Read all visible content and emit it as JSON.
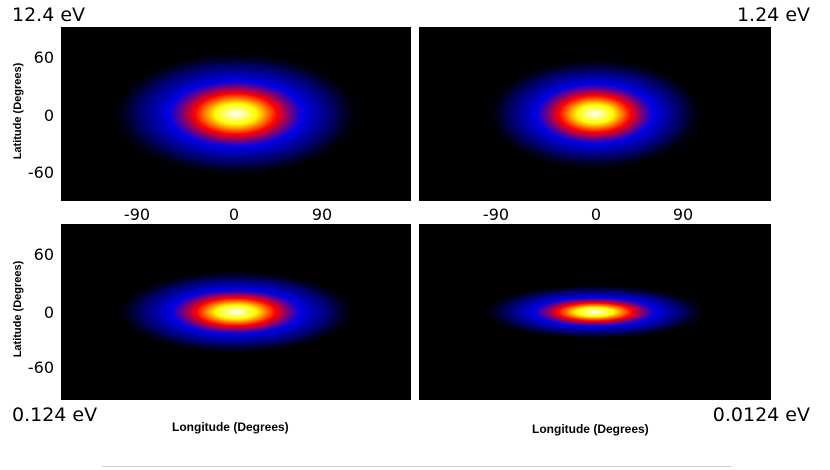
{
  "chart_data": [
    {
      "type": "heatmap",
      "title": "12.4 eV",
      "x_ticks": [
        "-90",
        "0",
        "90"
      ],
      "y_ticks": [
        "60",
        "0",
        "-60"
      ],
      "ylabel": "Latitude (Degrees)",
      "xlabel": "",
      "xlim": [
        -180,
        180
      ],
      "ylim": [
        -90,
        90
      ],
      "peak": {
        "lon": 0,
        "lat": 0
      },
      "spread_deg": {
        "lon": 60,
        "lat": 30
      },
      "colormap": [
        "#000000",
        "#0000ff",
        "#ff0000",
        "#ffff00",
        "#ffffff"
      ]
    },
    {
      "type": "heatmap",
      "title": "1.24 eV",
      "x_ticks": [
        "-90",
        "0",
        "90"
      ],
      "y_ticks": [],
      "ylabel": "",
      "xlabel": "",
      "xlim": [
        -180,
        180
      ],
      "ylim": [
        -90,
        90
      ],
      "peak": {
        "lon": 0,
        "lat": 0
      },
      "spread_deg": {
        "lon": 52,
        "lat": 27
      },
      "colormap": [
        "#000000",
        "#0000ff",
        "#ff0000",
        "#ffff00",
        "#ffffff"
      ]
    },
    {
      "type": "heatmap",
      "title": "0.124 eV",
      "x_ticks": [],
      "y_ticks": [
        "60",
        "0",
        "-60"
      ],
      "ylabel": "Latitude (Degrees)",
      "xlabel": "Longitude (Degrees)",
      "xlim": [
        -180,
        180
      ],
      "ylim": [
        -90,
        90
      ],
      "peak": {
        "lon": 0,
        "lat": 0
      },
      "spread_deg": {
        "lon": 58,
        "lat": 20
      },
      "colormap": [
        "#000000",
        "#0000ff",
        "#ff0000",
        "#ffff00",
        "#ffffff"
      ]
    },
    {
      "type": "heatmap",
      "title": "0.0124 eV",
      "x_ticks": [],
      "y_ticks": [],
      "ylabel": "",
      "xlabel": "Longitude (Degrees)",
      "xlim": [
        -180,
        180
      ],
      "ylim": [
        -90,
        90
      ],
      "peak": {
        "lon": 0,
        "lat": 0
      },
      "spread_deg": {
        "lon": 54,
        "lat": 13
      },
      "colormap": [
        "#000000",
        "#0000ff",
        "#ff0000",
        "#ffff00",
        "#ffffff"
      ]
    }
  ]
}
